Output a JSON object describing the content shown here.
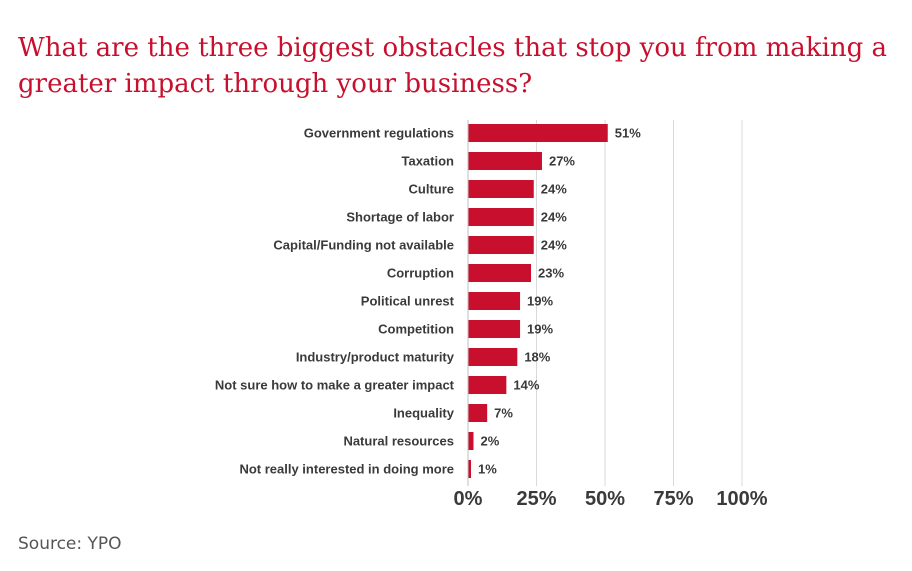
{
  "chart_data": {
    "type": "bar",
    "orientation": "horizontal",
    "title": "What are the three biggest obstacles that stop you from making a greater impact through your business?",
    "categories": [
      "Government regulations",
      "Taxation",
      "Culture",
      "Shortage of labor",
      "Capital/Funding not available",
      "Corruption",
      "Political unrest",
      "Competition",
      "Industry/product maturity",
      "Not sure how to make a greater impact",
      "Inequality",
      "Natural resources",
      "Not really interested in doing more"
    ],
    "values": [
      51,
      27,
      24,
      24,
      24,
      23,
      19,
      19,
      18,
      14,
      7,
      2,
      1
    ],
    "value_labels": [
      "51%",
      "27%",
      "24%",
      "24%",
      "24%",
      "23%",
      "19%",
      "19%",
      "18%",
      "14%",
      "7%",
      "2%",
      "1%"
    ],
    "xlim": [
      0,
      100
    ],
    "xticks": [
      0,
      25,
      50,
      75,
      100
    ],
    "xtick_labels": [
      "0%",
      "25%",
      "50%",
      "75%",
      "100%"
    ],
    "xlabel": "",
    "ylabel": "",
    "grid": true,
    "bar_color": "#c8102e",
    "title_color": "#c8102e"
  },
  "source": "Source: YPO"
}
